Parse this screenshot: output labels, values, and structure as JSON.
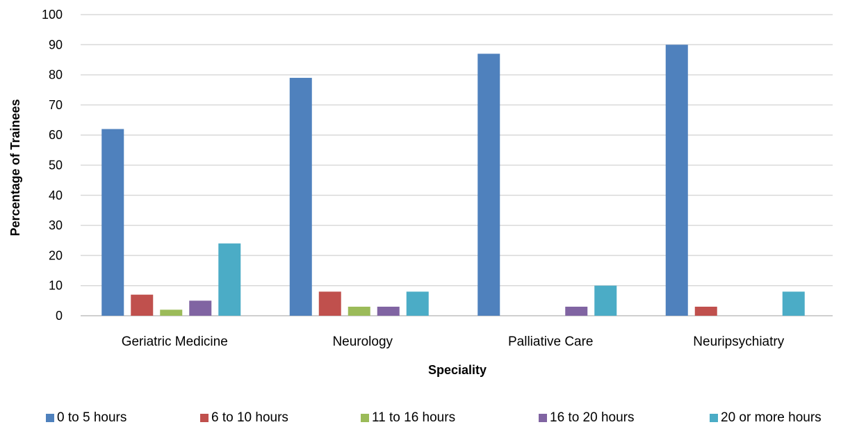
{
  "chart_data": {
    "type": "bar",
    "categories": [
      "Geriatric Medicine",
      "Neurology",
      "Palliative Care",
      "Neuripsychiatry"
    ],
    "series": [
      {
        "name": "0 to 5 hours",
        "color": "#4F81BD",
        "values": [
          62,
          79,
          87,
          90
        ]
      },
      {
        "name": "6 to 10 hours",
        "color": "#C0504D",
        "values": [
          7,
          8,
          0,
          3
        ]
      },
      {
        "name": "11 to 16 hours",
        "color": "#9BBB59",
        "values": [
          2,
          3,
          0,
          0
        ]
      },
      {
        "name": "16 to 20 hours",
        "color": "#8064A2",
        "values": [
          5,
          3,
          3,
          0
        ]
      },
      {
        "name": "20 or more hours",
        "color": "#4BACC6",
        "values": [
          24,
          8,
          10,
          8
        ]
      }
    ],
    "xlabel": "Speciality",
    "ylabel": "Percentage of Trainees",
    "ylim": [
      0,
      100
    ],
    "yticks": [
      "0",
      "10",
      "20",
      "30",
      "40",
      "50",
      "60",
      "70",
      "80",
      "90",
      "100"
    ],
    "grid": true,
    "legend_position": "bottom"
  }
}
